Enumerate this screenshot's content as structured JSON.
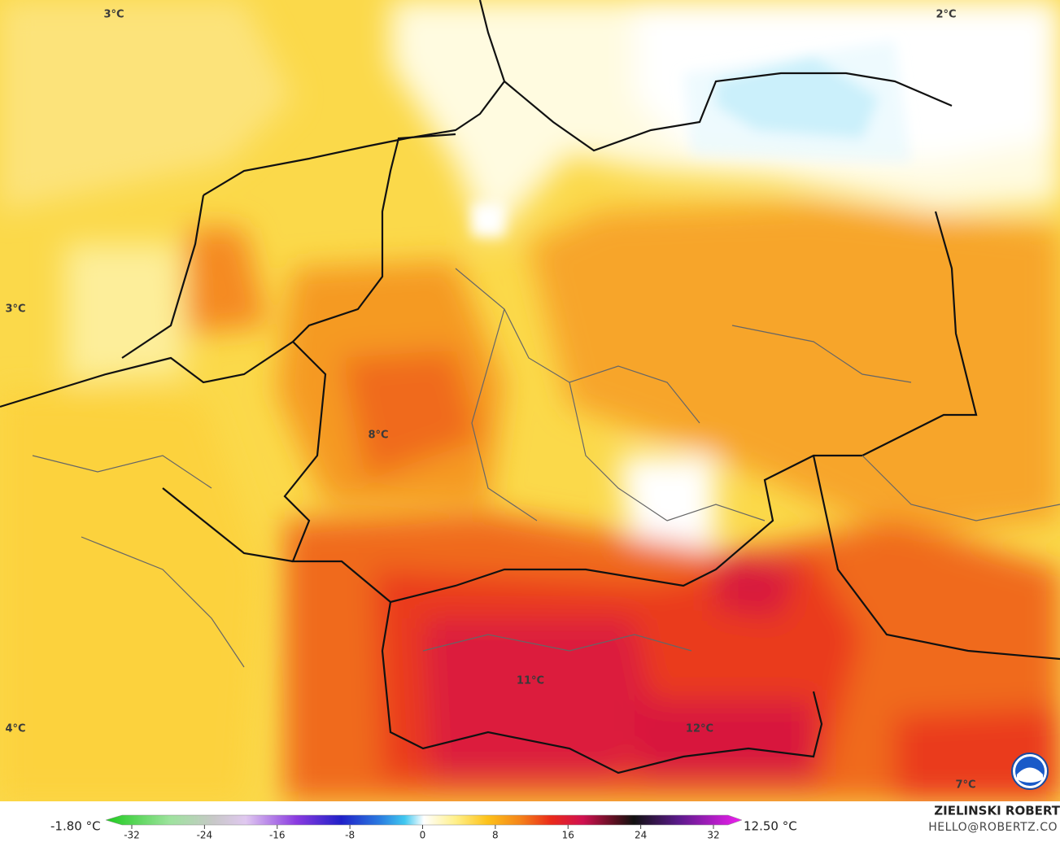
{
  "map": {
    "labels": [
      "3°C",
      "2°C",
      "3°C",
      "8°C",
      "11°C",
      "12°C",
      "4°C",
      "7°C"
    ]
  },
  "legend": {
    "min_label": "-1.80 °C",
    "max_label": "12.50 °C",
    "ticks": [
      -32,
      -24,
      -16,
      -8,
      0,
      8,
      16,
      24,
      32
    ]
  },
  "credit": {
    "name": "ZIELINSKI ROBERT",
    "email": "HELLO@ROBERTZ.CO"
  }
}
